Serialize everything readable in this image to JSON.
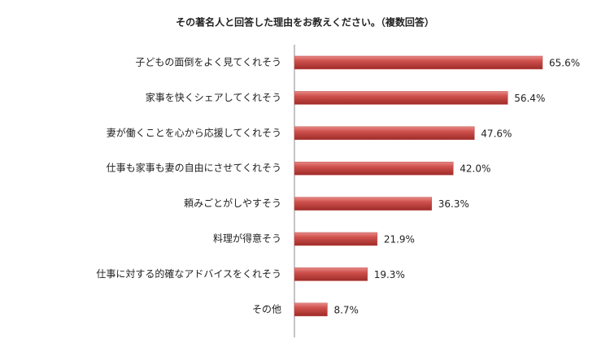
{
  "chart_data": {
    "type": "bar",
    "orientation": "horizontal",
    "title": "その著名人と回答した理由をお教えください。（複数回答）",
    "categories": [
      "子どもの面倒をよく見てくれそう",
      "家事を快くシェアしてくれそう",
      "妻が働くことを心から応援してくれそう",
      "仕事も家事も妻の自由にさせてくれそう",
      "頼みごとがしやすそう",
      "料理が得意そう",
      "仕事に対する的確なアドバイスをくれそう",
      "その他"
    ],
    "values": [
      65.6,
      56.4,
      47.6,
      42.0,
      36.3,
      21.9,
      19.3,
      8.7
    ],
    "value_labels": [
      "65.6%",
      "56.4%",
      "47.6%",
      "42.0%",
      "36.3%",
      "21.9%",
      "19.3%",
      "8.7%"
    ],
    "color": "#c0504d"
  }
}
